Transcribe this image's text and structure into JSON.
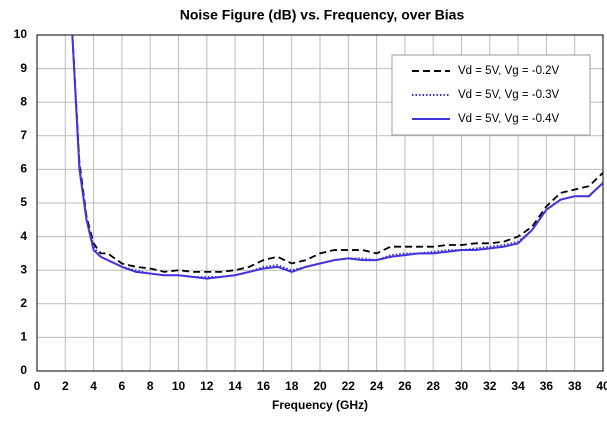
{
  "chart_data": {
    "type": "line",
    "title": "Noise Figure (dB) vs. Frequency, over Bias",
    "xlabel": "Frequency (GHz)",
    "x": [
      2.5,
      3,
      3.5,
      4,
      4.5,
      5,
      6,
      7,
      8,
      9,
      10,
      11,
      12,
      13,
      14,
      15,
      16,
      17,
      18,
      19,
      20,
      21,
      22,
      23,
      24,
      25,
      26,
      27,
      28,
      29,
      30,
      31,
      32,
      33,
      34,
      35,
      36,
      37,
      38,
      39,
      40
    ],
    "series": [
      {
        "name": "Vd = 5V, Vg = -0.2V",
        "color": "#000000",
        "style": "dashed",
        "values": [
          10,
          6.2,
          4.6,
          3.8,
          3.5,
          3.5,
          3.2,
          3.1,
          3.05,
          2.95,
          3.0,
          2.95,
          2.95,
          2.95,
          3.0,
          3.1,
          3.3,
          3.4,
          3.2,
          3.3,
          3.5,
          3.6,
          3.6,
          3.6,
          3.5,
          3.7,
          3.7,
          3.7,
          3.7,
          3.75,
          3.75,
          3.8,
          3.8,
          3.85,
          4.0,
          4.3,
          4.9,
          5.3,
          5.4,
          5.5,
          5.9
        ]
      },
      {
        "name": "Vd = 5V, Vg = -0.3V",
        "color": "#3333cc",
        "style": "dotted",
        "values": [
          10,
          6.1,
          4.5,
          3.7,
          3.4,
          3.3,
          3.1,
          3.0,
          2.9,
          2.85,
          2.85,
          2.8,
          2.8,
          2.8,
          2.85,
          2.95,
          3.1,
          3.15,
          3.0,
          3.1,
          3.2,
          3.3,
          3.35,
          3.35,
          3.3,
          3.45,
          3.5,
          3.5,
          3.55,
          3.6,
          3.6,
          3.65,
          3.7,
          3.75,
          3.85,
          4.2,
          4.8,
          5.1,
          5.2,
          5.2,
          5.6
        ]
      },
      {
        "name": "Vd = 5V, Vg = -0.4V",
        "color": "#4433dd",
        "style": "solid",
        "values": [
          10,
          6.0,
          4.5,
          3.6,
          3.4,
          3.3,
          3.1,
          2.95,
          2.9,
          2.85,
          2.85,
          2.8,
          2.75,
          2.8,
          2.85,
          2.95,
          3.05,
          3.1,
          2.95,
          3.1,
          3.2,
          3.3,
          3.35,
          3.3,
          3.3,
          3.4,
          3.45,
          3.5,
          3.5,
          3.55,
          3.6,
          3.6,
          3.65,
          3.7,
          3.8,
          4.2,
          4.8,
          5.1,
          5.2,
          5.2,
          5.6
        ]
      }
    ],
    "xlim": [
      0,
      40
    ],
    "xticks": [
      0,
      2,
      4,
      6,
      8,
      10,
      12,
      14,
      16,
      18,
      20,
      22,
      24,
      26,
      28,
      30,
      32,
      34,
      36,
      38,
      40
    ],
    "ylim": [
      0,
      10
    ],
    "yticks": [
      0,
      1,
      2,
      3,
      4,
      5,
      6,
      7,
      8,
      9,
      10
    ],
    "grid": true,
    "legend": "upper right"
  }
}
